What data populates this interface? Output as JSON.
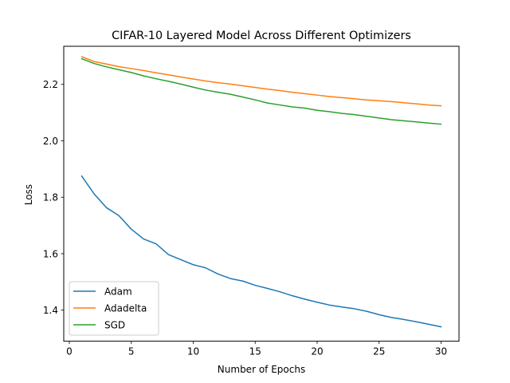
{
  "chart_data": {
    "type": "line",
    "title": "CIFAR-10 Layered Model Across Different Optimizers",
    "xlabel": "Number of Epochs",
    "ylabel": "Loss",
    "xlim": [
      -0.45,
      31.45
    ],
    "ylim": [
      1.29,
      2.335
    ],
    "xticks": [
      0,
      5,
      10,
      15,
      20,
      25,
      30
    ],
    "yticks": [
      1.4,
      1.6,
      1.8,
      2.0,
      2.2
    ],
    "xtick_labels": [
      "0",
      "5",
      "10",
      "15",
      "20",
      "25",
      "30"
    ],
    "ytick_labels": [
      "1.4",
      "1.6",
      "1.8",
      "2.0",
      "2.2"
    ],
    "grid": false,
    "legend_position": "lower-left",
    "x": [
      1,
      2,
      3,
      4,
      5,
      6,
      7,
      8,
      9,
      10,
      11,
      12,
      13,
      14,
      15,
      16,
      17,
      18,
      19,
      20,
      21,
      22,
      23,
      24,
      25,
      26,
      27,
      28,
      29,
      30
    ],
    "series": [
      {
        "name": "Adam",
        "color": "#1f77b4",
        "values": [
          1.875,
          1.812,
          1.763,
          1.735,
          1.687,
          1.652,
          1.635,
          1.597,
          1.579,
          1.561,
          1.55,
          1.528,
          1.512,
          1.503,
          1.488,
          1.477,
          1.465,
          1.451,
          1.439,
          1.428,
          1.418,
          1.411,
          1.405,
          1.396,
          1.384,
          1.374,
          1.367,
          1.359,
          1.35,
          1.341
        ]
      },
      {
        "name": "Adadelta",
        "color": "#ff7f0e",
        "values": [
          2.298,
          2.281,
          2.272,
          2.263,
          2.256,
          2.249,
          2.241,
          2.234,
          2.226,
          2.219,
          2.212,
          2.206,
          2.201,
          2.195,
          2.189,
          2.183,
          2.178,
          2.172,
          2.167,
          2.162,
          2.157,
          2.153,
          2.149,
          2.145,
          2.142,
          2.139,
          2.135,
          2.131,
          2.127,
          2.124
        ]
      },
      {
        "name": "SGD",
        "color": "#2ca02c",
        "values": [
          2.291,
          2.274,
          2.262,
          2.252,
          2.242,
          2.23,
          2.22,
          2.211,
          2.201,
          2.19,
          2.18,
          2.172,
          2.165,
          2.155,
          2.145,
          2.134,
          2.127,
          2.12,
          2.116,
          2.108,
          2.103,
          2.097,
          2.093,
          2.087,
          2.081,
          2.075,
          2.071,
          2.067,
          2.063,
          2.059
        ]
      }
    ]
  }
}
